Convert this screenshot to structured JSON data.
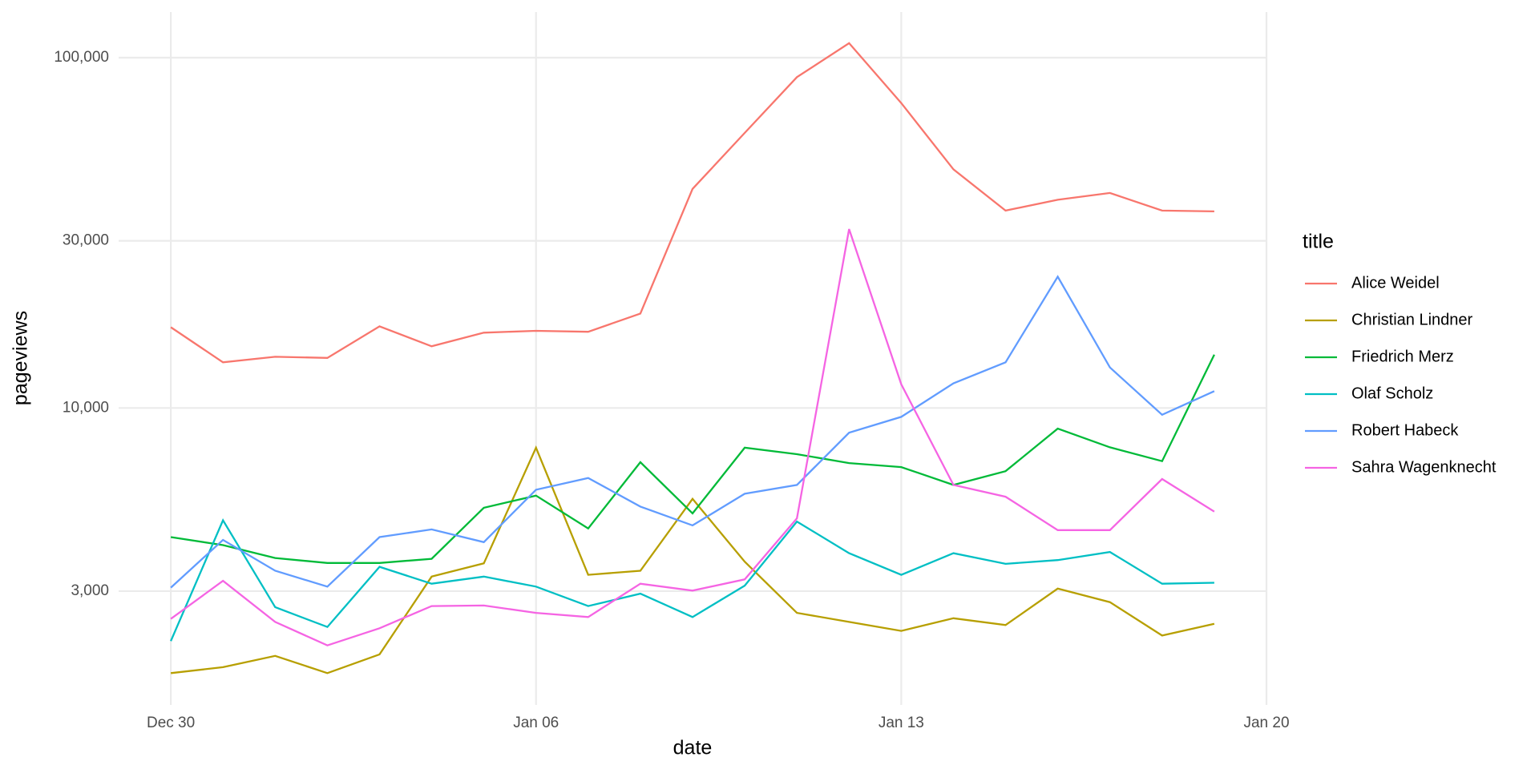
{
  "chart_data": {
    "type": "line",
    "x_label": "date",
    "y_label": "pageviews",
    "legend_title": "title",
    "legend": "right",
    "log_y": true,
    "grid": true,
    "x": [
      "Dec 30",
      "Dec 31",
      "Jan 01",
      "Jan 02",
      "Jan 03",
      "Jan 04",
      "Jan 05",
      "Jan 06",
      "Jan 07",
      "Jan 08",
      "Jan 09",
      "Jan 10",
      "Jan 11",
      "Jan 12",
      "Jan 13",
      "Jan 14",
      "Jan 15",
      "Jan 16",
      "Jan 17",
      "Jan 18",
      "Jan 19"
    ],
    "xlim": [
      "Dec 29",
      "Jan 20"
    ],
    "xticks": [
      "Dec 30",
      "Jan 06",
      "Jan 13",
      "Jan 20"
    ],
    "ylim": [
      1420,
      135000
    ],
    "yticks": [
      {
        "value": 3000,
        "label": "3,000"
      },
      {
        "value": 10000,
        "label": "10,000"
      },
      {
        "value": 30000,
        "label": "30,000"
      },
      {
        "value": 100000,
        "label": "100,000"
      }
    ],
    "series": [
      {
        "name": "Alice Weidel",
        "color": "#F8766D",
        "values": [
          17000,
          13500,
          14000,
          13900,
          17100,
          15000,
          16400,
          16600,
          16500,
          18600,
          42200,
          61000,
          88000,
          110000,
          74200,
          48000,
          36600,
          39300,
          41100,
          36600,
          36400
        ]
      },
      {
        "name": "Christian Lindner",
        "color": "#B79F00",
        "values": [
          1750,
          1820,
          1960,
          1750,
          1980,
          3300,
          3600,
          7700,
          3340,
          3430,
          5500,
          3640,
          2600,
          2450,
          2310,
          2510,
          2400,
          3050,
          2790,
          2240,
          2420
        ]
      },
      {
        "name": "Friedrich Merz",
        "color": "#00BA38",
        "values": [
          4280,
          4060,
          3730,
          3610,
          3610,
          3710,
          5190,
          5620,
          4530,
          7000,
          5000,
          7700,
          7380,
          6960,
          6780,
          6030,
          6600,
          8730,
          7720,
          7050,
          14200
        ]
      },
      {
        "name": "Olaf Scholz",
        "color": "#00BFC4",
        "values": [
          2160,
          4780,
          2700,
          2370,
          3520,
          3150,
          3300,
          3090,
          2720,
          2950,
          2530,
          3110,
          4740,
          3850,
          3340,
          3850,
          3590,
          3680,
          3880,
          3150,
          3170
        ]
      },
      {
        "name": "Robert Habeck",
        "color": "#619CFF",
        "values": [
          3070,
          4200,
          3430,
          3090,
          4280,
          4500,
          4140,
          5840,
          6310,
          5230,
          4620,
          5690,
          6030,
          8500,
          9430,
          11760,
          13500,
          23700,
          13050,
          9560,
          11170
        ]
      },
      {
        "name": "Sahra Wagenknecht",
        "color": "#F564E3",
        "values": [
          2500,
          3210,
          2450,
          2100,
          2350,
          2720,
          2730,
          2600,
          2530,
          3150,
          3010,
          3240,
          4840,
          32400,
          11680,
          6030,
          5580,
          4480,
          4480,
          6270,
          5060
        ]
      }
    ]
  }
}
